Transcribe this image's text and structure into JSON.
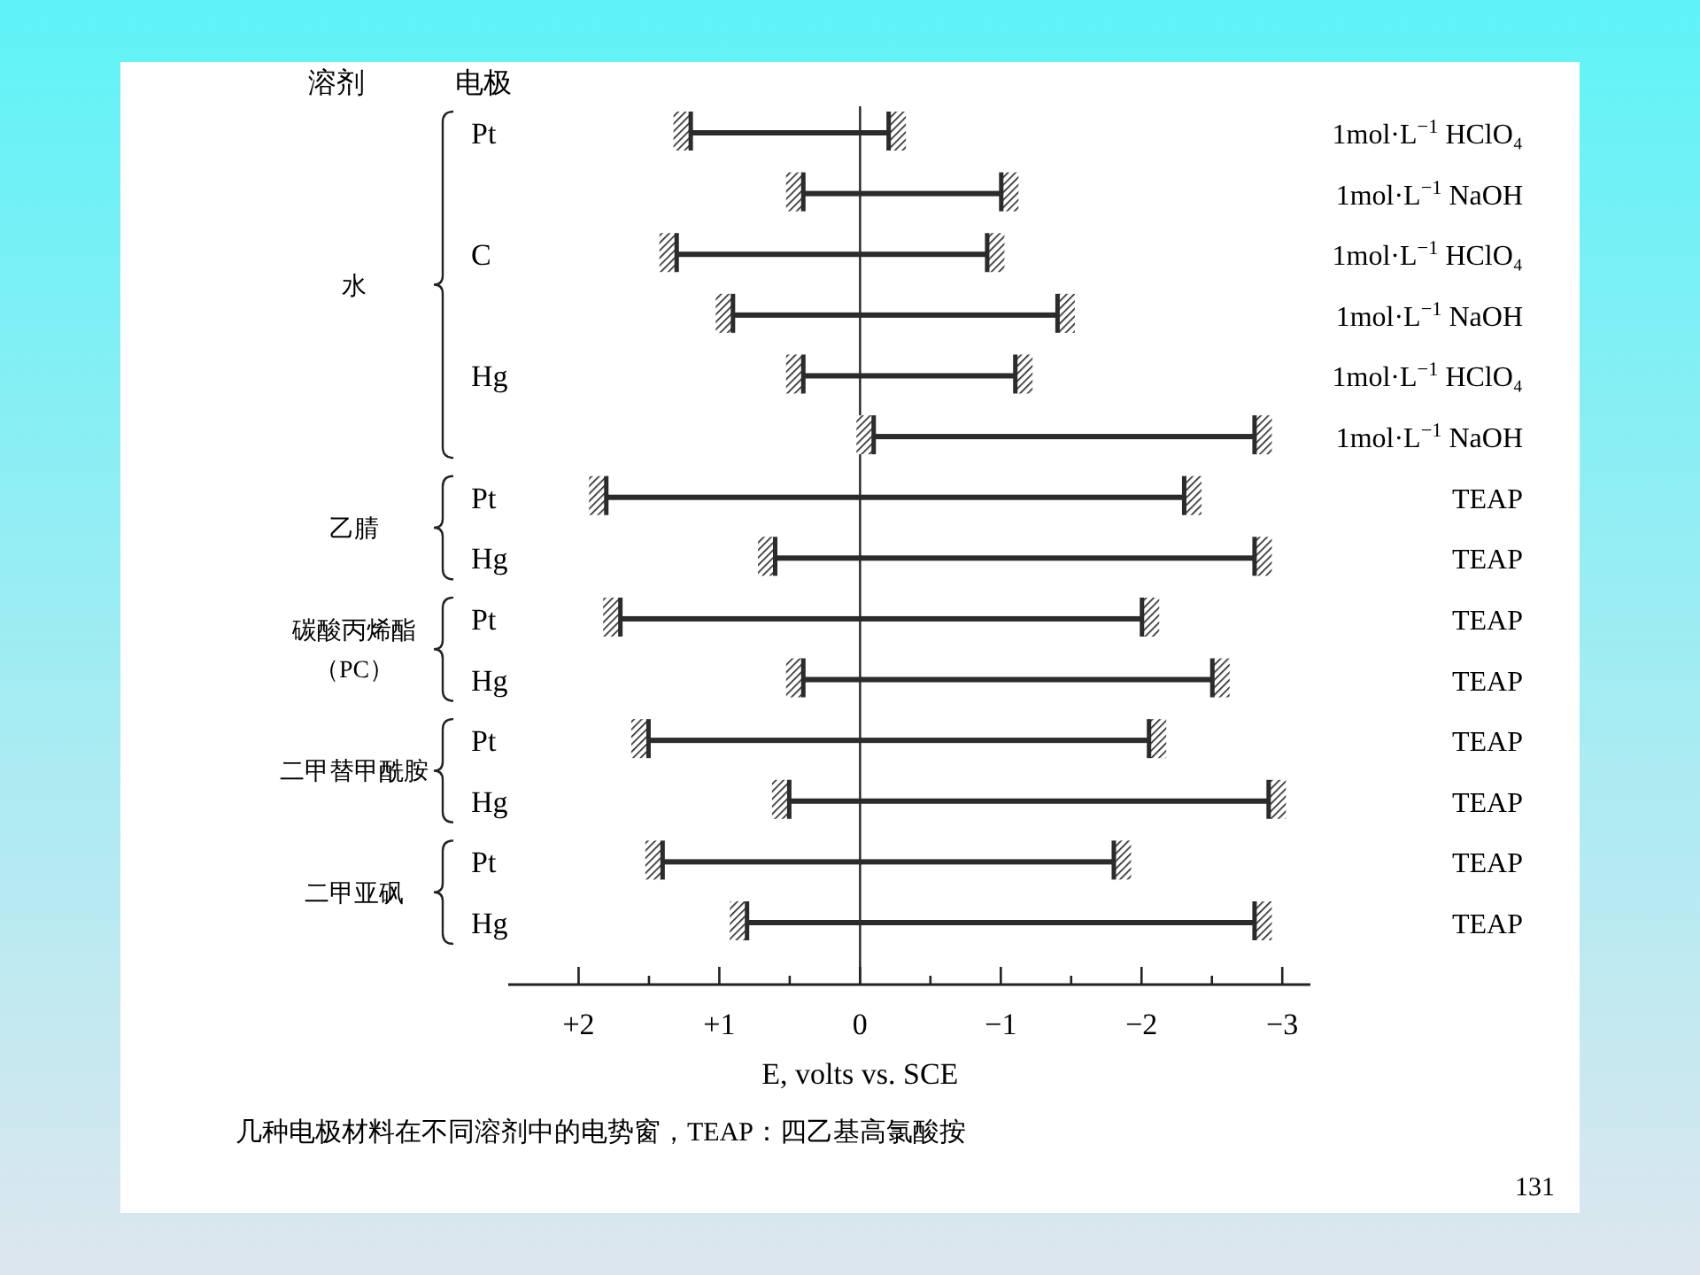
{
  "chart_data": {
    "type": "bar",
    "orientation": "horizontal",
    "xlabel": "E, volts vs. SCE",
    "categories": [
      "Pt",
      null,
      "C",
      null,
      "Hg",
      null,
      "Pt",
      "Hg",
      "Pt",
      "Hg",
      "Pt",
      "Hg",
      "Pt",
      "Hg"
    ],
    "base": [
      1.2,
      0.4,
      1.3,
      0.9,
      0.4,
      -0.1,
      1.8,
      0.6,
      1.7,
      0.4,
      1.5,
      0.5,
      1.4,
      0.8
    ],
    "values": [
      -1.4,
      -1.4,
      -2.2,
      -2.3,
      -1.5,
      -2.7,
      -4.1,
      -3.4,
      -3.7,
      -2.9,
      -3.55,
      -3.4,
      -3.2,
      -3.6
    ],
    "color": "#2b2b2b",
    "xlim": [
      2.5,
      -3.2
    ],
    "xticks": [
      {
        "value": 2,
        "label": "+2"
      },
      {
        "value": 1.5,
        "label": null
      },
      {
        "value": 1,
        "label": "+1"
      },
      {
        "value": 0.5,
        "label": null
      },
      0,
      {
        "value": -0.5,
        "label": null
      },
      {
        "value": -1,
        "label": "−1"
      },
      {
        "value": -1.5,
        "label": null
      },
      {
        "value": -2,
        "label": "−2"
      },
      {
        "value": -2.5,
        "label": null
      },
      {
        "value": -3,
        "label": "−3"
      }
    ],
    "ref_lines": [
      {
        "axis": "x",
        "value": 0,
        "color": "#222222"
      }
    ],
    "grid": false,
    "annotations": [
      "溶剂",
      "电极",
      "水",
      "乙腈",
      "碳酸丙烯酯",
      "（PC）",
      "二甲替甲酰胺",
      "二甲亚砜",
      "1mol·L$^{−1}$ HClO₄",
      "1mol·L$^{−1}$ NaOH",
      "1mol·L$^{−1}$ HClO₄",
      "1mol·L$^{−1}$ NaOH",
      "1mol·L$^{−1}$ HClO₄",
      "1mol·L$^{−1}$ NaOH",
      "TEAP",
      "TEAP",
      "TEAP",
      "TEAP",
      "TEAP",
      "TEAP",
      "TEAP",
      "TEAP",
      "几种电极材料在不同溶剂中的电势窗，TEAP：四乙基高氯酸按",
      "131"
    ]
  }
}
